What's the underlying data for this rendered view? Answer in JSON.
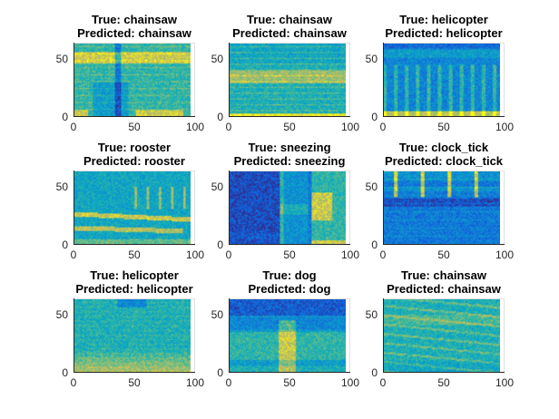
{
  "chart_data": [
    {
      "type": "heatmap",
      "title": [
        "True: chainsaw",
        "Predicted: chainsaw"
      ],
      "xticks": [
        "0",
        "50",
        "100"
      ],
      "yticks": [
        "0",
        "50"
      ],
      "xlim": [
        0,
        100
      ],
      "ylim": [
        0,
        64
      ]
    },
    {
      "type": "heatmap",
      "title": [
        "True: chainsaw",
        "Predicted: chainsaw"
      ],
      "xticks": [
        "0",
        "50",
        "100"
      ],
      "yticks": [
        "0",
        "50"
      ],
      "xlim": [
        0,
        100
      ],
      "ylim": [
        0,
        64
      ]
    },
    {
      "type": "heatmap",
      "title": [
        "True: helicopter",
        "Predicted: helicopter"
      ],
      "xticks": [
        "0",
        "50",
        "100"
      ],
      "yticks": [
        "0",
        "50"
      ],
      "xlim": [
        0,
        100
      ],
      "ylim": [
        0,
        64
      ]
    },
    {
      "type": "heatmap",
      "title": [
        "True: rooster",
        "Predicted: rooster"
      ],
      "xticks": [
        "0",
        "50",
        "100"
      ],
      "yticks": [
        "0",
        "50"
      ],
      "xlim": [
        0,
        100
      ],
      "ylim": [
        0,
        64
      ]
    },
    {
      "type": "heatmap",
      "title": [
        "True: sneezing",
        "Predicted: sneezing"
      ],
      "xticks": [
        "0",
        "50",
        "100"
      ],
      "yticks": [
        "0",
        "50"
      ],
      "xlim": [
        0,
        100
      ],
      "ylim": [
        0,
        64
      ]
    },
    {
      "type": "heatmap",
      "title": [
        "True: clock_tick",
        "Predicted: clock_tick"
      ],
      "xticks": [
        "0",
        "50",
        "100"
      ],
      "yticks": [
        "0",
        "50"
      ],
      "xlim": [
        0,
        100
      ],
      "ylim": [
        0,
        64
      ]
    },
    {
      "type": "heatmap",
      "title": [
        "True: helicopter",
        "Predicted: helicopter"
      ],
      "xticks": [
        "0",
        "50",
        "100"
      ],
      "yticks": [
        "0",
        "50"
      ],
      "xlim": [
        0,
        100
      ],
      "ylim": [
        0,
        64
      ]
    },
    {
      "type": "heatmap",
      "title": [
        "True: dog",
        "Predicted: dog"
      ],
      "xticks": [
        "0",
        "50",
        "100"
      ],
      "yticks": [
        "0",
        "50"
      ],
      "xlim": [
        0,
        100
      ],
      "ylim": [
        0,
        64
      ]
    },
    {
      "type": "heatmap",
      "title": [
        "True: chainsaw",
        "Predicted: chainsaw"
      ],
      "xticks": [
        "0",
        "50",
        "100"
      ],
      "yticks": [
        "0",
        "50"
      ],
      "xlim": [
        0,
        100
      ],
      "ylim": [
        0,
        64
      ]
    }
  ],
  "colormap": [
    "#352a87",
    "#0f5cdd",
    "#1481d6",
    "#06a4ca",
    "#2eb7a4",
    "#87bf77",
    "#d1bb59",
    "#f9fb0e"
  ]
}
